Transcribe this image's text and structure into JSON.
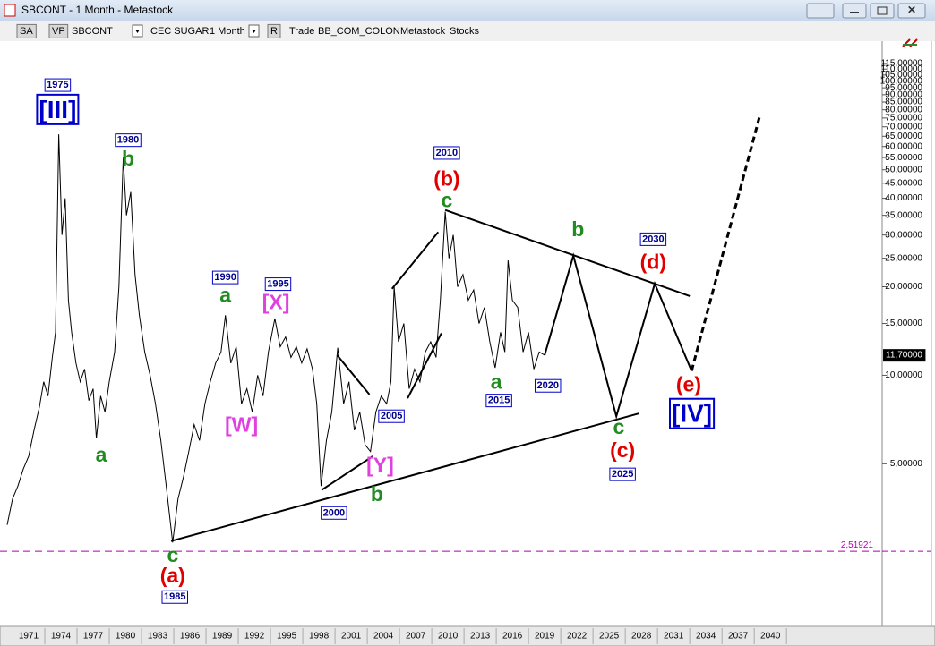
{
  "window": {
    "title": "SBCONT - 1 Month - Metastock"
  },
  "toolbar": {
    "items": [
      "SA",
      "VP",
      "SBCONT",
      "CEC SUGAR",
      "1 Month",
      "R",
      "Trade",
      "BB_COM_COLON",
      "Metastock",
      "Stocks"
    ]
  },
  "chart_data": {
    "type": "line",
    "log_scale": true,
    "grid": false,
    "color": "#000000",
    "x": [
      1969.0,
      1969.5,
      1970.0,
      1970.5,
      1971.0,
      1971.5,
      1972.0,
      1972.4,
      1972.8,
      1973.2,
      1973.5,
      1973.8,
      1974.1,
      1974.4,
      1974.7,
      1975.0,
      1975.4,
      1975.8,
      1976.2,
      1976.6,
      1977.0,
      1977.3,
      1977.7,
      1978.1,
      1978.5,
      1979.0,
      1979.4,
      1979.8,
      1980.1,
      1980.5,
      1980.9,
      1981.3,
      1981.8,
      1982.3,
      1982.8,
      1983.3,
      1983.8,
      1984.4,
      1984.9,
      1985.4,
      1985.9,
      1986.4,
      1986.9,
      1987.4,
      1987.9,
      1988.4,
      1988.9,
      1989.3,
      1989.8,
      1990.3,
      1990.8,
      1991.3,
      1991.8,
      1992.3,
      1992.8,
      1993.3,
      1993.9,
      1994.4,
      1994.9,
      1995.4,
      1995.9,
      1996.4,
      1996.9,
      1997.4,
      1997.8,
      1998.2,
      1998.7,
      1999.2,
      1999.75,
      2000.3,
      2000.8,
      2001.3,
      2001.8,
      2002.3,
      2002.8,
      2003.3,
      2003.8,
      2004.3,
      2004.7,
      2005.0,
      2005.4,
      2005.9,
      2006.4,
      2006.9,
      2007.4,
      2007.9,
      2008.4,
      2008.9,
      2009.3,
      2009.75,
      2010.1,
      2010.5,
      2010.9,
      2011.4,
      2011.9,
      2012.4,
      2012.9,
      2013.4,
      2013.9,
      2014.4,
      2014.9,
      2015.3,
      2015.6,
      2016.0,
      2016.5,
      2017.0,
      2017.5,
      2018.0,
      2018.5,
      2019.0
    ],
    "values": [
      3.1,
      3.8,
      4.2,
      4.8,
      5.3,
      6.5,
      7.8,
      9.5,
      8.5,
      11.5,
      14,
      66,
      30,
      40,
      18,
      14,
      11,
      9.5,
      10.5,
      8.2,
      9,
      6.1,
      8.5,
      7.5,
      9.5,
      12,
      20,
      55,
      35,
      42,
      22,
      16,
      12,
      10,
      8,
      6,
      4.2,
      2.7,
      3.8,
      4.5,
      5.5,
      6.8,
      6,
      8,
      9.5,
      11,
      12,
      16,
      11,
      12.5,
      8,
      9,
      7.5,
      10,
      8.5,
      12,
      15.6,
      12.5,
      13.5,
      11.5,
      12.5,
      11,
      12.3,
      10.5,
      8,
      4.2,
      6,
      7.5,
      12.4,
      8,
      9.5,
      6.5,
      7.5,
      5.8,
      5.5,
      7.5,
      8.5,
      8,
      9.5,
      20,
      13,
      15,
      9,
      10.5,
      9.5,
      12,
      13,
      11.5,
      18,
      36,
      25,
      30,
      20,
      22,
      18,
      19.5,
      15,
      17,
      13,
      10.6,
      14,
      12,
      24.6,
      18,
      17,
      12,
      14,
      10.5,
      12,
      11.7
    ],
    "xlim": [
      1968.75,
      2050.4
    ],
    "xticks": [
      1971,
      1974,
      1977,
      1980,
      1983,
      1986,
      1989,
      1992,
      1995,
      1998,
      2001,
      2004,
      2007,
      2010,
      2013,
      2016,
      2019,
      2022,
      2025,
      2028,
      2031,
      2034,
      2037,
      2040
    ],
    "ylim": [
      1.4,
      135
    ],
    "yticks": [
      {
        "value": 5,
        "label": "5,00000"
      },
      {
        "value": 10,
        "label": "10,00000"
      },
      {
        "value": 15,
        "label": "15,00000"
      },
      {
        "value": 20,
        "label": "20,00000"
      },
      {
        "value": 25,
        "label": "25,00000"
      },
      {
        "value": 30,
        "label": "30,00000"
      },
      {
        "value": 35,
        "label": "35,00000"
      },
      {
        "value": 40,
        "label": "40,00000"
      },
      {
        "value": 45,
        "label": "45,00000"
      },
      {
        "value": 50,
        "label": "50,00000"
      },
      {
        "value": 55,
        "label": "55,00000"
      },
      {
        "value": 60,
        "label": "60,00000"
      },
      {
        "value": 65,
        "label": "65,00000"
      },
      {
        "value": 70,
        "label": "70,00000"
      },
      {
        "value": 75,
        "label": "75,00000"
      },
      {
        "value": 80,
        "label": "80,00000"
      },
      {
        "value": 85,
        "label": "85,00000"
      },
      {
        "value": 90,
        "label": "90,00000"
      },
      {
        "value": 95,
        "label": "95,00000"
      },
      {
        "value": 100,
        "label": "100,00000"
      },
      {
        "value": 105,
        "label": "105,00000"
      },
      {
        "value": 110,
        "label": "110,00000"
      },
      {
        "value": 115,
        "label": "115,00000"
      }
    ],
    "last_value": {
      "value": 11.7,
      "label": "11,70000"
    },
    "support": {
      "value": 2.51921,
      "label": "2,51921",
      "color": "#b000b0"
    },
    "projection": [
      {
        "x": [
          2019.0,
          2021.67,
          2025.67,
          2029.25,
          2032.67
        ],
        "values": [
          11.7,
          25.5,
          7.25,
          20.5,
          10.35
        ],
        "dashed": false
      },
      {
        "x": [
          2032.67,
          2039.0
        ],
        "values": [
          10.35,
          76
        ],
        "dashed": true
      }
    ],
    "trendlines": [
      {
        "x": [
          2009.75,
          2032.5
        ],
        "values": [
          36.5,
          18.6
        ]
      },
      {
        "x": [
          1984.25,
          2027.75
        ],
        "values": [
          2.73,
          7.41
        ]
      },
      {
        "x": [
          1998.25,
          2003.0
        ],
        "values": [
          4.07,
          5.3
        ]
      },
      {
        "x": [
          1999.7,
          2002.7
        ],
        "values": [
          11.7,
          8.6
        ]
      },
      {
        "x": [
          2004.8,
          2009.1
        ],
        "values": [
          19.7,
          30.7
        ]
      },
      {
        "x": [
          2006.25,
          2009.4
        ],
        "values": [
          8.35,
          13.9
        ]
      }
    ],
    "annotations": [
      {
        "text": "1975",
        "x": 1973.7,
        "y": 97,
        "style": "year"
      },
      {
        "text": "[III]",
        "x": 1973.7,
        "y": 79,
        "style": "major"
      },
      {
        "text": "1980",
        "x": 1980.25,
        "y": 63,
        "style": "year"
      },
      {
        "text": "b",
        "x": 1980.25,
        "y": 54,
        "style": "wave",
        "color": "#228b22"
      },
      {
        "text": "a",
        "x": 1977.75,
        "y": 5.3,
        "style": "wave",
        "color": "#228b22"
      },
      {
        "text": "c",
        "x": 1984.4,
        "y": 2.42,
        "style": "wave",
        "color": "#228b22"
      },
      {
        "text": "(a)",
        "x": 1984.4,
        "y": 2.06,
        "style": "wave",
        "color": "#e00000"
      },
      {
        "text": "1985",
        "x": 1984.6,
        "y": 1.76,
        "style": "year"
      },
      {
        "text": "1990",
        "x": 1989.3,
        "y": 21.5,
        "style": "year"
      },
      {
        "text": "a",
        "x": 1989.3,
        "y": 18.5,
        "style": "wave",
        "color": "#228b22"
      },
      {
        "text": "1995",
        "x": 1994.2,
        "y": 20.4,
        "style": "year"
      },
      {
        "text": "[X]",
        "x": 1994.0,
        "y": 17.5,
        "style": "wave",
        "color": "#e040e0"
      },
      {
        "text": "[W]",
        "x": 1990.8,
        "y": 6.7,
        "style": "wave",
        "color": "#e040e0"
      },
      {
        "text": "2000",
        "x": 1999.4,
        "y": 3.4,
        "style": "year"
      },
      {
        "text": "[Y]",
        "x": 2003.7,
        "y": 4.9,
        "style": "wave",
        "color": "#e040e0"
      },
      {
        "text": "b",
        "x": 2003.4,
        "y": 3.9,
        "style": "wave",
        "color": "#228b22"
      },
      {
        "text": "2005",
        "x": 2004.75,
        "y": 7.25,
        "style": "year"
      },
      {
        "text": "2010",
        "x": 2009.9,
        "y": 57,
        "style": "year"
      },
      {
        "text": "(b)",
        "x": 2009.9,
        "y": 46,
        "style": "wave",
        "color": "#e00000"
      },
      {
        "text": "c",
        "x": 2009.9,
        "y": 39,
        "style": "wave",
        "color": "#228b22"
      },
      {
        "text": "a",
        "x": 2014.5,
        "y": 9.4,
        "style": "wave",
        "color": "#228b22"
      },
      {
        "text": "2015",
        "x": 2014.75,
        "y": 8.2,
        "style": "year"
      },
      {
        "text": "2020",
        "x": 2019.3,
        "y": 9.2,
        "style": "year"
      },
      {
        "text": "b",
        "x": 2022.1,
        "y": 31,
        "style": "wave",
        "color": "#228b22"
      },
      {
        "text": "2030",
        "x": 2029.1,
        "y": 29,
        "style": "year"
      },
      {
        "text": "(d)",
        "x": 2029.1,
        "y": 24,
        "style": "wave",
        "color": "#e00000"
      },
      {
        "text": "c",
        "x": 2025.9,
        "y": 6.6,
        "style": "wave",
        "color": "#228b22"
      },
      {
        "text": "(c)",
        "x": 2026.25,
        "y": 5.5,
        "style": "wave",
        "color": "#e00000"
      },
      {
        "text": "2025",
        "x": 2026.25,
        "y": 4.6,
        "style": "year"
      },
      {
        "text": "(e)",
        "x": 2032.4,
        "y": 9.2,
        "style": "wave",
        "color": "#e00000"
      },
      {
        "text": "[IV]",
        "x": 2032.7,
        "y": 7.3,
        "style": "major"
      }
    ]
  }
}
